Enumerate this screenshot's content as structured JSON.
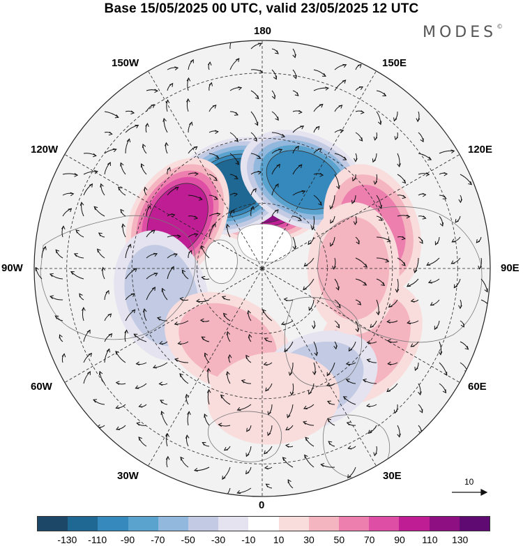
{
  "title": "Base 15/05/2025 00 UTC, valid 23/05/2025 12 UTC",
  "brand": {
    "name": "MODES",
    "mark": "©"
  },
  "longitude_labels": {
    "top": "180",
    "bottom": "0",
    "left": "90W",
    "right": "90E",
    "upper_left_1": "150W",
    "upper_left_2": "120W",
    "upper_right_1": "150E",
    "upper_right_2": "120E",
    "lower_left_1": "60W",
    "lower_left_2": "30W",
    "lower_right_1": "60E",
    "lower_right_2": "30E"
  },
  "vector_reference": {
    "value": "10"
  },
  "colorbar": {
    "colors": [
      "#1c4766",
      "#1f6894",
      "#3589bd",
      "#5aa3cf",
      "#92b8dd",
      "#c2cbe3",
      "#e4e3ef",
      "#ffffff",
      "#f9dcdc",
      "#f4b4c0",
      "#ec7fae",
      "#de4ea5",
      "#bf1d94",
      "#8e0f82",
      "#5e0a72"
    ],
    "tick_labels": [
      "-130",
      "-110",
      "-90",
      "-70",
      "-50",
      "-30",
      "-10",
      "10",
      "30",
      "50",
      "70",
      "90",
      "110",
      "130"
    ]
  },
  "anomalies": [
    {
      "lon": 180,
      "colat": 22,
      "value": 115
    },
    {
      "lon": -160,
      "colat": 27,
      "value": -110
    },
    {
      "lon": 155,
      "colat": 30,
      "value": -95
    },
    {
      "lon": -120,
      "colat": 30,
      "value": 95
    },
    {
      "lon": 110,
      "colat": 36,
      "value": 55
    },
    {
      "lon": -75,
      "colat": 32,
      "value": -40
    },
    {
      "lon": -25,
      "colat": 25,
      "value": 45
    },
    {
      "lon": 55,
      "colat": 40,
      "value": 35
    },
    {
      "lon": 25,
      "colat": 38,
      "value": -40
    },
    {
      "lon": 90,
      "colat": 28,
      "value": 30
    },
    {
      "lon": 5,
      "colat": 40,
      "value": 25
    }
  ]
}
